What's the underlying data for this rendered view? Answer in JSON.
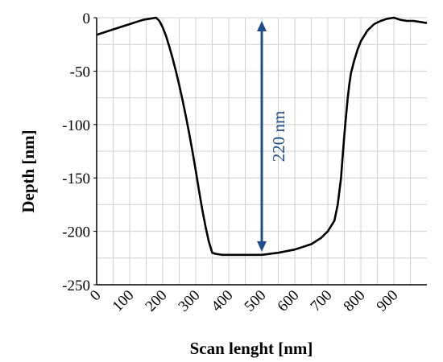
{
  "chart_data": {
    "type": "line",
    "title": "",
    "xlabel": "Scan lenght [nm]",
    "ylabel": "Depth [nm]",
    "xlim": [
      0,
      1000
    ],
    "ylim": [
      -250,
      0
    ],
    "xticks": [
      0,
      100,
      200,
      300,
      400,
      500,
      600,
      700,
      800,
      900
    ],
    "yticks": [
      0,
      -50,
      -100,
      -150,
      -200,
      -250
    ],
    "grid": true,
    "legend": "none",
    "colors": {
      "line": "#000000",
      "annotation": "#1f4e8c",
      "grid": "#d0d0d0"
    },
    "series": [
      {
        "x": [
          0,
          20,
          40,
          60,
          80,
          100,
          120,
          140,
          160,
          180,
          190,
          200,
          210,
          220,
          230,
          240,
          250,
          260,
          270,
          280,
          290,
          300,
          310,
          320,
          330,
          340,
          350,
          360,
          380,
          400,
          450,
          500,
          550,
          600,
          650,
          680,
          700,
          720,
          730,
          740,
          745,
          750,
          755,
          760,
          765,
          770,
          780,
          790,
          800,
          820,
          840,
          860,
          880,
          900,
          920,
          940,
          960,
          980,
          1000
        ],
        "y": [
          -16,
          -14,
          -12,
          -10,
          -8,
          -6,
          -4,
          -2,
          -1,
          0,
          -3,
          -9,
          -17,
          -27,
          -38,
          -50,
          -63,
          -77,
          -92,
          -108,
          -125,
          -143,
          -162,
          -180,
          -196,
          -210,
          -220,
          -221,
          -222,
          -222,
          -222,
          -222,
          -220,
          -217,
          -212,
          -206,
          -200,
          -190,
          -175,
          -150,
          -130,
          -110,
          -92,
          -76,
          -63,
          -52,
          -40,
          -30,
          -22,
          -12,
          -6,
          -3,
          -1,
          0,
          -2,
          -3,
          -3,
          -4,
          -5
        ]
      }
    ],
    "annotations": [
      {
        "text": "220 nm",
        "x": 500,
        "y_from": 0,
        "y_to": -222
      }
    ]
  }
}
